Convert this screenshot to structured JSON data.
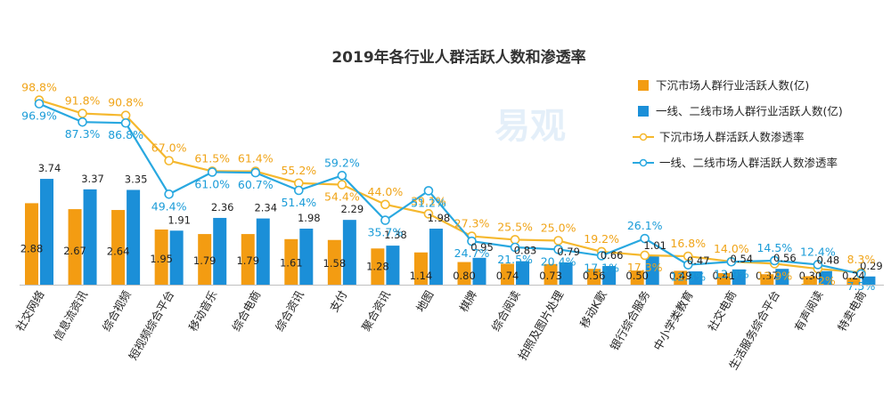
{
  "chart_data": {
    "type": "bar",
    "title": "2019年各行业人群活跃人数和渗透率",
    "categories": [
      "社交网络",
      "信息流资讯",
      "综合视频",
      "短视频综合平台",
      "移动音乐",
      "综合电商",
      "综合资讯",
      "支付",
      "聚合资讯",
      "地图",
      "棋牌",
      "综合阅读",
      "拍照及图片处理",
      "移动K歌",
      "银行综合服务",
      "中小学类教育",
      "社交电商",
      "生活服务综合平台",
      "有声阅读",
      "特卖电商"
    ],
    "series": [
      {
        "name": "下沉市场人群行业活跃人数(亿)",
        "kind": "bar",
        "color": "#F39C12",
        "values": [
          2.88,
          2.67,
          2.64,
          1.95,
          1.79,
          1.79,
          1.61,
          1.58,
          1.28,
          1.14,
          0.8,
          0.74,
          0.73,
          0.56,
          0.5,
          0.49,
          0.41,
          0.37,
          0.3,
          0.24
        ]
      },
      {
        "name": "一线、二线市场人群行业活跃人数(亿)",
        "kind": "bar",
        "color": "#1B8FD8",
        "values": [
          3.74,
          3.37,
          3.35,
          1.91,
          2.36,
          2.34,
          1.98,
          2.29,
          1.38,
          1.98,
          0.95,
          0.83,
          0.79,
          0.66,
          1.01,
          0.47,
          0.54,
          0.56,
          0.48,
          0.29
        ]
      },
      {
        "name": "下沉市场人群活跃人数渗透率",
        "kind": "line",
        "color": "#F5B82E",
        "values": [
          98.8,
          91.8,
          90.8,
          67.0,
          61.5,
          61.4,
          55.2,
          54.4,
          44.0,
          39.1,
          27.3,
          25.5,
          25.0,
          19.2,
          17.3,
          16.8,
          14.0,
          12.9,
          10.2,
          8.3
        ],
        "labels": [
          "98.8%",
          "91.8%",
          "90.8%",
          "67.0%",
          "61.5%",
          "61.4%",
          "55.2%",
          "54.4%",
          "44.0%",
          "39.1%",
          "27.3%",
          "25.5%",
          "25.0%",
          "19.2%",
          "17.3%",
          "16.8%",
          "14.0%",
          "12.9%",
          "10.2%",
          "8.3%"
        ]
      },
      {
        "name": "一线、二线市场人群活跃人数渗透率",
        "kind": "line",
        "color": "#29A8E0",
        "values": [
          96.9,
          87.3,
          86.8,
          49.4,
          61.0,
          60.7,
          51.4,
          59.2,
          35.7,
          51.2,
          24.7,
          21.5,
          20.4,
          17.1,
          26.1,
          12.3,
          13.9,
          14.5,
          12.4,
          7.5
        ],
        "labels": [
          "96.9%",
          "87.3%",
          "86.8%",
          "49.4%",
          "61.0%",
          "60.7%",
          "51.4%",
          "59.2%",
          "35.7%",
          "51.2%",
          "24.7%",
          "21.5%",
          "20.4%",
          "17.1%",
          "26.1%",
          "12.3%",
          "13.9%",
          "14.5%",
          "12.4%",
          "7.5%"
        ]
      }
    ],
    "legend": "top-right",
    "grid": false
  },
  "watermark": {
    "brand": "易观"
  }
}
